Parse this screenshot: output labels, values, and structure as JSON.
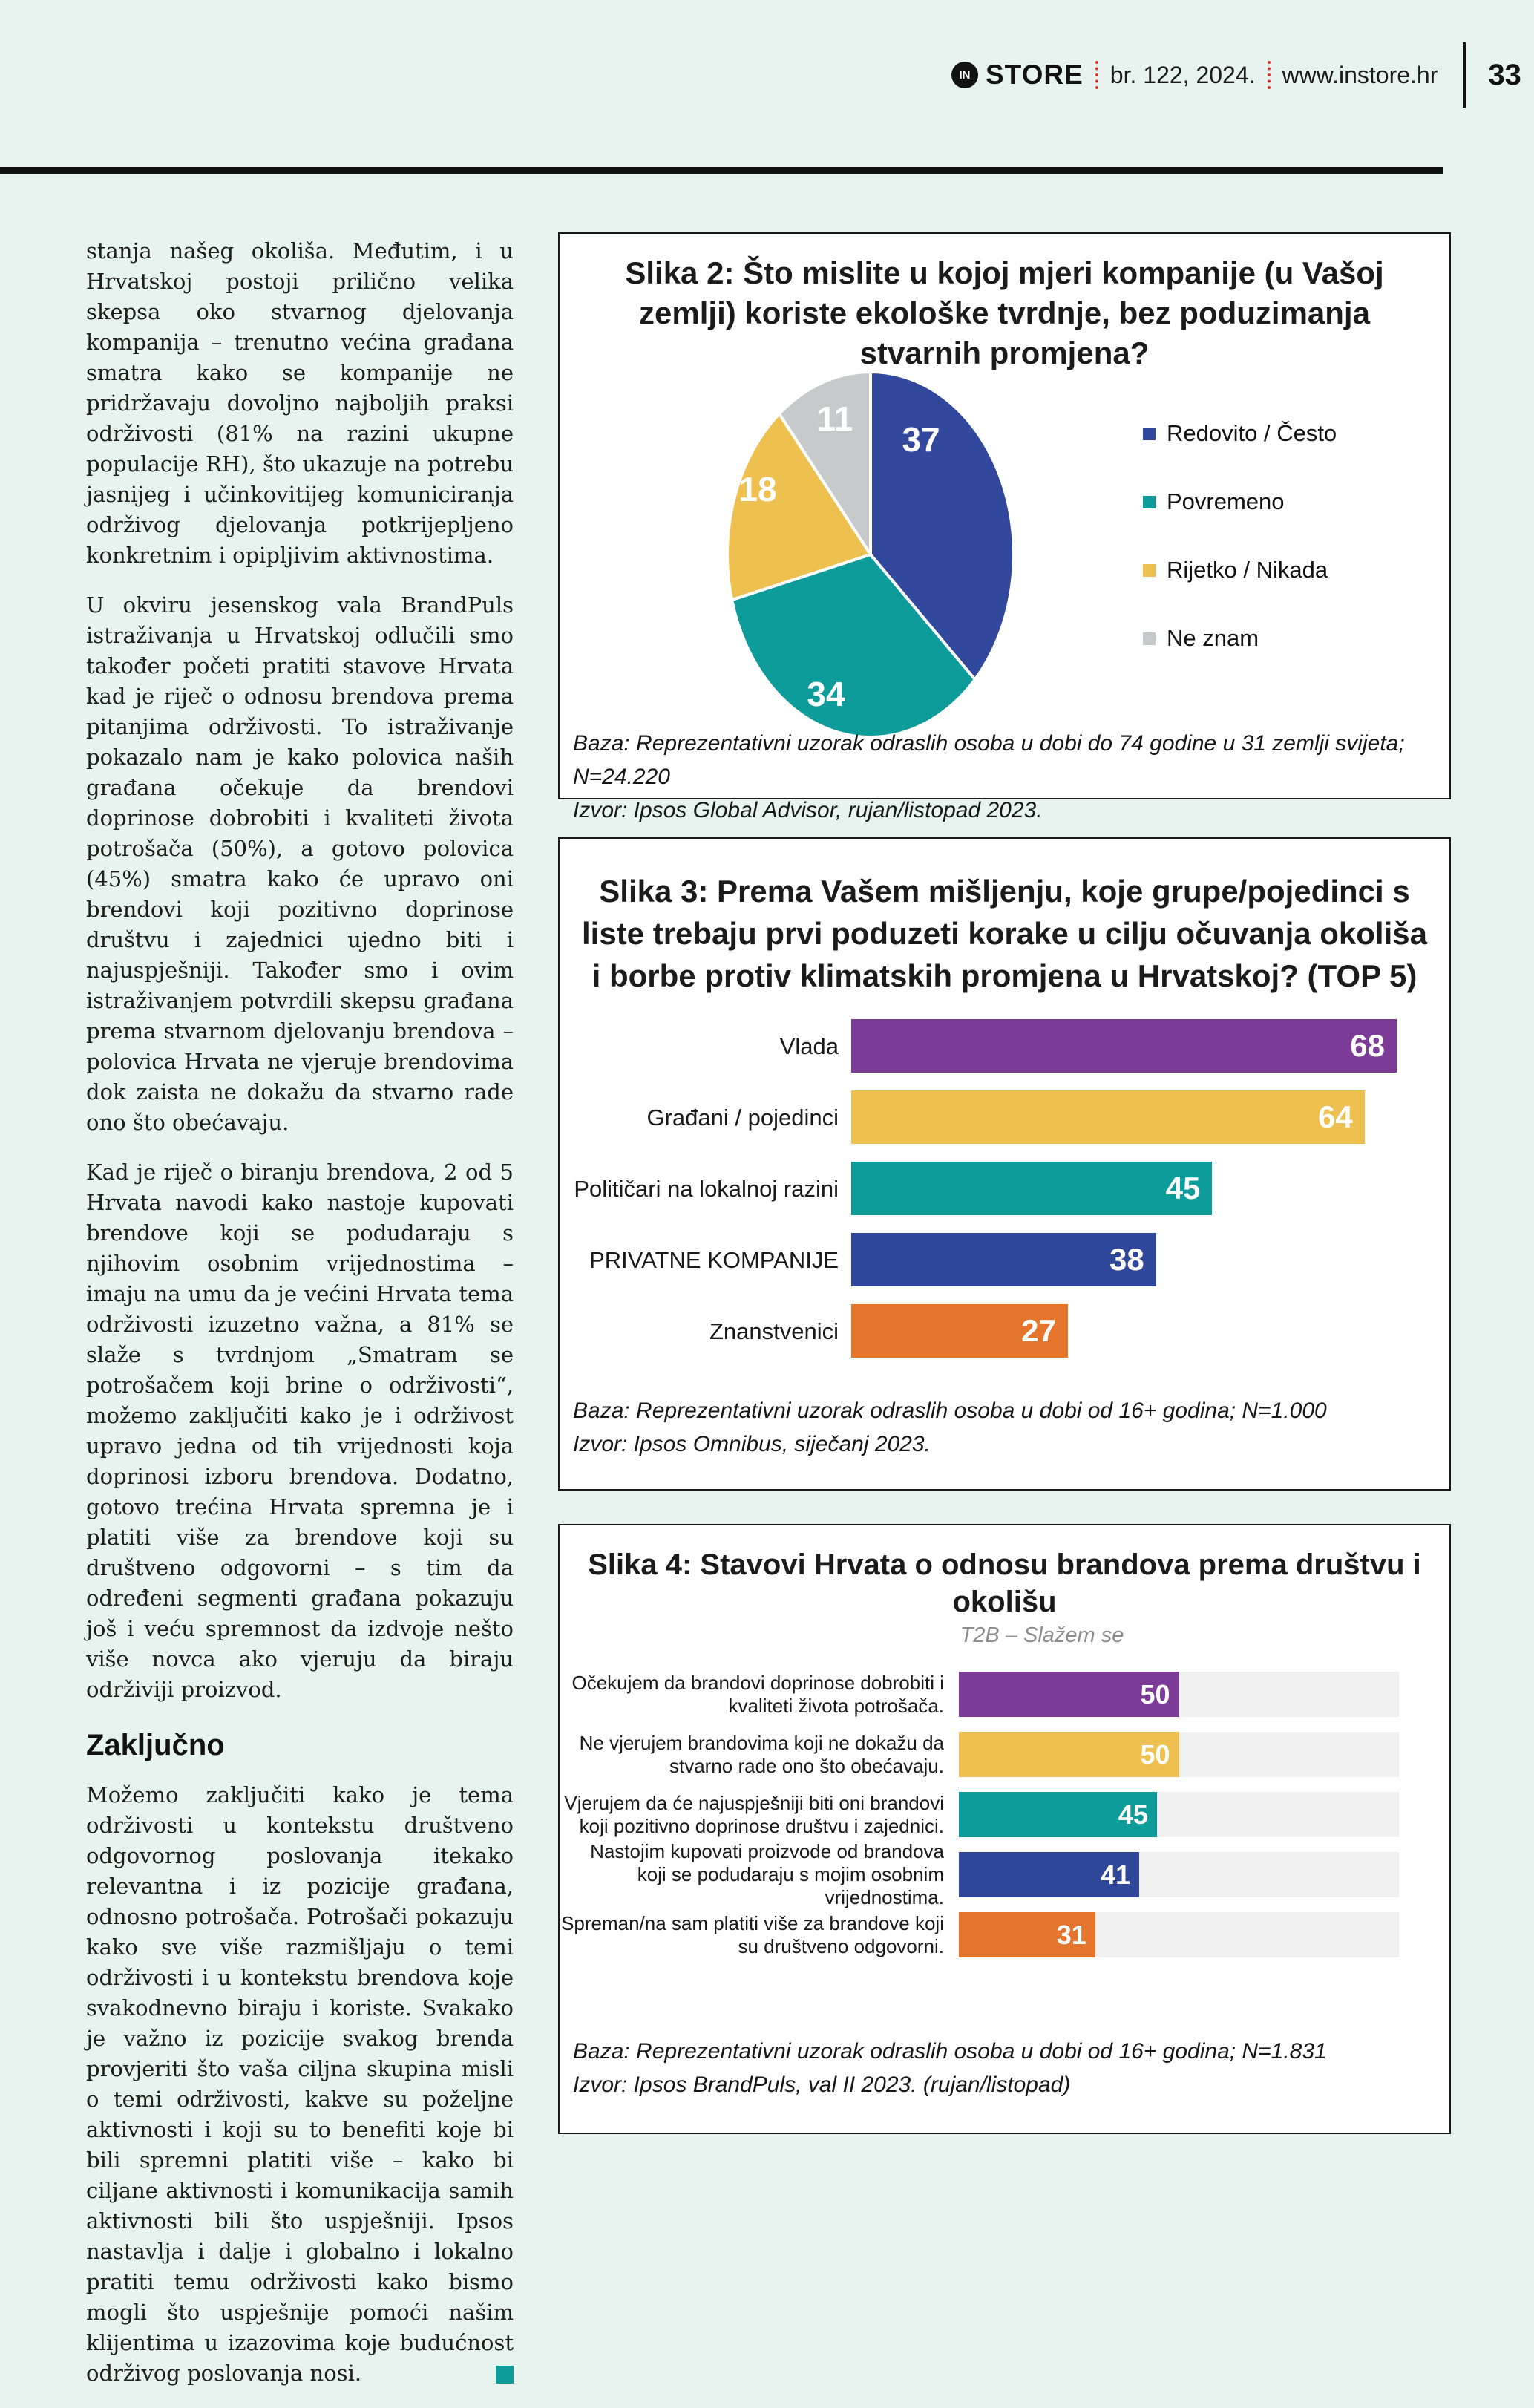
{
  "header": {
    "logo_icon": "IN",
    "logo_text": "STORE",
    "issue": "br. 122, 2024.",
    "website": "www.instore.hr",
    "page_number": "33"
  },
  "article": {
    "paragraph_1": "stanja našeg okoliša. Međutim, i u Hrvatskoj postoji prilično velika skepsa oko stvarnog djelovanja kompanija – trenutno većina građana smatra kako se kompanije ne pridržavaju dovoljno najboljih praksi održivosti (81% na razini ukupne populacije RH), što ukazuje na potrebu jasnijeg i učinkovitijeg komuniciranja održivog djelovanja potkrijepljeno konkretnim i opipljivim aktivnostima.",
    "paragraph_2": "U okviru jesenskog vala BrandPuls istraživanja u Hrvatskoj odlučili smo također početi pratiti stavove Hrvata kad je riječ o odnosu brendova prema pitanjima održivosti. To istraživanje pokazalo nam je kako polovica naših građana očekuje da brendovi doprinose dobrobiti i kvaliteti života potrošača (50%), a gotovo polovica (45%) smatra kako će upravo oni brendovi koji pozitivno doprinose društvu i zajednici ujedno biti i najuspješniji. Također smo i ovim istraživanjem potvrdili skepsu građana prema stvarnom djelovanju brendova – polovica Hrvata ne vjeruje brendovima dok zaista ne dokažu da stvarno rade ono što obećavaju.",
    "paragraph_3": "Kad je riječ o biranju brendova, 2 od 5 Hrvata navodi kako nastoje kupovati brendove koji se podudaraju s njihovim osobnim vrijednostima – imaju na umu da je većini Hrvata tema održivosti izuzetno važna, a 81% se slaže s tvrdnjom „Smatram se potrošačem koji brine o održivosti“, možemo zaključiti kako je i održivost upravo jedna od tih vrijednosti koja doprinosi izboru brendova. Dodatno, gotovo trećina Hrvata spremna je i platiti više za brendove koji su društveno odgovorni – s tim da određeni segmenti građana pokazuju još i veću spremnost da izdvoje nešto više novca ako vjeruju da biraju održiviji proizvod.",
    "section_heading": "Zaključno",
    "paragraph_4": "Možemo zaključiti kako je tema održivosti u kontekstu društveno odgovornog poslovanja itekako relevantna i iz pozicije građana, odnosno potrošača. Potrošači pokazuju kako sve više razmišljaju o temi održivosti i u kontekstu brendova koje svakodnevno biraju i koriste. Svakako je važno iz pozicije svakog brenda provjeriti što vaša ciljna skupina misli o temi održivosti, kakve su poželjne aktivnosti i koji su to benefiti koje bi bili spremni platiti više – kako bi ciljane aktivnosti i komunikacija samih aktivnosti bili što uspješniji. Ipsos nastavlja i dalje i globalno i lokalno pratiti temu održivosti kako bismo mogli što uspješnije pomoći našim klijentima u izazovima koje budućnost održivog poslovanja nosi."
  },
  "chart_data": [
    {
      "type": "pie",
      "title": "Slika 2: Što mislite u kojoj mjeri kompanije (u Vašoj zemlji) koriste ekološke tvrdnje, bez poduzimanja stvarnih promjena?",
      "labels": [
        "Redovito / Često",
        "Povremeno",
        "Rijetko / Nikada",
        "Ne znam"
      ],
      "values": [
        37,
        34,
        18,
        11
      ],
      "colors": [
        "#31489C",
        "#0E9C9B",
        "#EEC04F",
        "#C8C9CA"
      ],
      "legend_position": "right",
      "notes": [
        "Baza: Reprezentativni uzorak odraslih osoba u dobi do 74 godine u 31 zemlji svijeta; N=24.220",
        "Izvor: Ipsos Global Advisor, rujan/listopad 2023."
      ]
    },
    {
      "type": "bar",
      "orientation": "horizontal",
      "title": "Slika 3: Prema Vašem mišljenju, koje grupe/pojedinci s liste trebaju prvi poduzeti korake u cilju očuvanja okoliša i borbe protiv klimatskih promjena u Hrvatskoj? (TOP 5)",
      "categories": [
        "Vlada",
        "Građani / pojedinci",
        "Političari na lokalnoj razini",
        "PRIVATNE KOMPANIJE",
        "Znanstvenici"
      ],
      "values": [
        68,
        64,
        45,
        38,
        27
      ],
      "colors": [
        "#7B3B97",
        "#EEC04F",
        "#0E9C9B",
        "#2E4799",
        "#E5752D"
      ],
      "xlim": [
        0,
        68
      ],
      "notes": [
        "Baza: Reprezentativni uzorak odraslih osoba u dobi od 16+ godina; N=1.000",
        "Izvor: Ipsos Omnibus, siječanj 2023."
      ]
    },
    {
      "type": "bar",
      "orientation": "horizontal",
      "title": "Slika 4: Stavovi Hrvata o odnosu brandova prema društvu i okolišu",
      "subtitle": "T2B – Slažem se",
      "categories": [
        "Očekujem da brandovi doprinose dobrobiti i kvaliteti života potrošača.",
        "Ne vjerujem brandovima koji ne dokažu da stvarno rade ono što obećavaju.",
        "Vjerujem da će najuspješniji biti oni brandovi koji pozitivno doprinose društvu i zajednici.",
        "Nastojim kupovati proizvode od brandova koji se podudaraju s mojim osobnim vrijednostima.",
        "Spreman/na sam platiti više za brandove koji su društveno odgovorni."
      ],
      "values": [
        50,
        50,
        45,
        41,
        31
      ],
      "colors": [
        "#7B3B97",
        "#EEC04F",
        "#0E9C9B",
        "#2E4799",
        "#E5752D"
      ],
      "xlim": [
        0,
        100
      ],
      "track_color": "#F0F0F0",
      "notes": [
        "Baza: Reprezentativni uzorak odraslih osoba u dobi od 16+ godina; N=1.831",
        "Izvor: Ipsos BrandPuls, val II 2023. (rujan/listopad)"
      ]
    }
  ]
}
